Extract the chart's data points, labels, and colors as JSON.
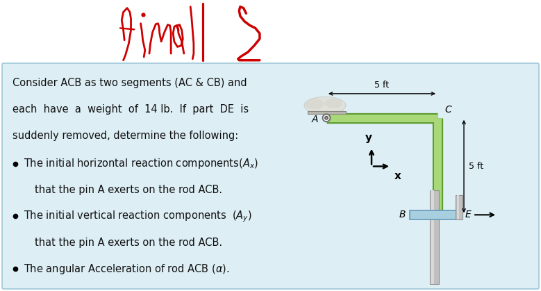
{
  "title_color": "#cc0000",
  "bg_color": "#ddeef5",
  "white_bg": "#ffffff",
  "text_color": "#111111",
  "green_rod_light": "#a8d878",
  "green_rod_dark": "#5a9a30",
  "blue_slider_color": "#a8cfe0",
  "gray_post_color": "#aaaaaa",
  "gray_post_dark": "#888888",
  "line1": "Consider ACB as two segments (AC & CB) and",
  "line2": "each  have  a  weight  of  14 lb.  If  part  DE  is",
  "line3": "suddenly removed, determine the following:",
  "bullet1b": "that the pin A exerts on the rod ACB.",
  "bullet2b": "that the pin A exerts on the rod ACB.",
  "dim_5ft_top": "5 ft",
  "dim_5ft_right": "5 ft",
  "label_A": "A",
  "label_B": "B",
  "label_C": "C",
  "label_E": "E",
  "label_x": "x",
  "label_y": "y"
}
